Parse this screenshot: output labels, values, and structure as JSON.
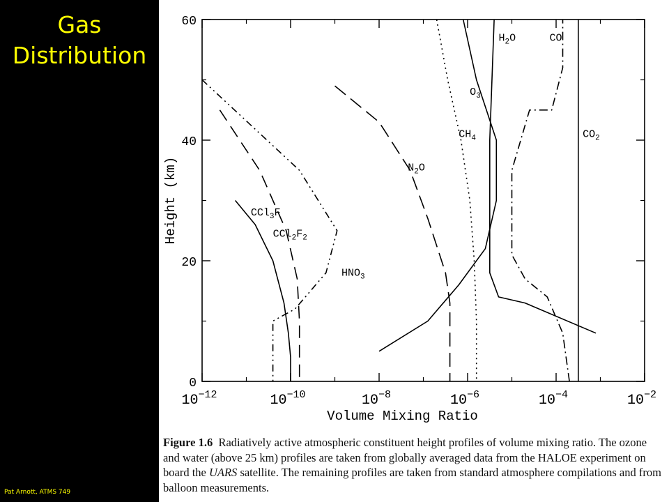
{
  "slide": {
    "title_line1": "Gas",
    "title_line2": "Distribution",
    "footer": "Pat Arnott,  ATMS 749",
    "title_color": "#FFFF00"
  },
  "caption": {
    "label": "Figure 1.6",
    "part1": "Radiatively active atmospheric constituent height profiles of volume mixing ratio. The ozone and water (above 25 km) profiles are taken from globally averaged data from the HALOE experiment on board the ",
    "satellite": "UARS",
    "part2": " satellite. The remaining profiles are taken from standard atmosphere compilations and from balloon measurements."
  },
  "chart_data": {
    "type": "line",
    "xlabel": "Volume Mixing Ratio",
    "ylabel": "Height (km)",
    "x_scale": "log",
    "xlim": [
      1e-12,
      0.01
    ],
    "ylim": [
      0,
      60
    ],
    "x_ticks": [
      {
        "base": "10",
        "exp": "−12",
        "value": -12
      },
      {
        "base": "10",
        "exp": "−10",
        "value": -10
      },
      {
        "base": "10",
        "exp": "−8",
        "value": -8
      },
      {
        "base": "10",
        "exp": "−6",
        "value": -6
      },
      {
        "base": "10",
        "exp": "−4",
        "value": -4
      },
      {
        "base": "10",
        "exp": "−2",
        "value": -2
      }
    ],
    "y_ticks": [
      {
        "label": "0",
        "value": 0
      },
      {
        "label": "20",
        "value": 20
      },
      {
        "label": "40",
        "value": 40
      },
      {
        "label": "60",
        "value": 60
      }
    ],
    "grid": false,
    "series": [
      {
        "key": "ccl3f",
        "name_parts": [
          [
            "CCl",
            false
          ],
          [
            "3",
            true
          ],
          [
            "F",
            false
          ]
        ],
        "label_pos": [
          -10.9,
          27.5
        ],
        "dash": "none",
        "points": [
          [
            -11.25,
            30
          ],
          [
            -10.8,
            26
          ],
          [
            -10.4,
            20
          ],
          [
            -10.15,
            13
          ],
          [
            -10.05,
            8
          ],
          [
            -10.0,
            4
          ],
          [
            -10.0,
            0
          ]
        ]
      },
      {
        "key": "ccl2f2",
        "name_parts": [
          [
            "CCl",
            false
          ],
          [
            "2",
            true
          ],
          [
            "F",
            false
          ],
          [
            "2",
            true
          ]
        ],
        "label_pos": [
          -10.4,
          24
        ],
        "dash": "18 10",
        "points": [
          [
            -11.6,
            45
          ],
          [
            -10.7,
            35
          ],
          [
            -10.1,
            25
          ],
          [
            -9.85,
            17
          ],
          [
            -9.8,
            10
          ],
          [
            -9.8,
            0
          ]
        ]
      },
      {
        "key": "hno3",
        "name_parts": [
          [
            "HNO",
            false
          ],
          [
            "3",
            true
          ]
        ],
        "label_pos": [
          -8.85,
          17.5
        ],
        "dash": "10 5 2 5 2 5",
        "points": [
          [
            -12.0,
            50
          ],
          [
            -9.8,
            35
          ],
          [
            -8.95,
            25
          ],
          [
            -9.2,
            18
          ],
          [
            -9.9,
            12
          ],
          [
            -10.4,
            10
          ],
          [
            -10.4,
            0
          ]
        ]
      },
      {
        "key": "n2o",
        "name_parts": [
          [
            "N",
            false
          ],
          [
            "2",
            true
          ],
          [
            "O",
            false
          ]
        ],
        "label_pos": [
          -7.35,
          35
        ],
        "dash": "20 9",
        "points": [
          [
            -9.0,
            49
          ],
          [
            -8.0,
            43
          ],
          [
            -7.3,
            35
          ],
          [
            -6.9,
            27
          ],
          [
            -6.5,
            18
          ],
          [
            -6.4,
            13
          ],
          [
            -6.4,
            0
          ]
        ]
      },
      {
        "key": "ch4",
        "name_parts": [
          [
            "CH",
            false
          ],
          [
            "4",
            true
          ]
        ],
        "label_pos": [
          -6.2,
          40.5
        ],
        "dash": "2 5",
        "points": [
          [
            -6.7,
            60
          ],
          [
            -6.45,
            50
          ],
          [
            -6.15,
            40
          ],
          [
            -5.95,
            30
          ],
          [
            -5.85,
            20
          ],
          [
            -5.8,
            10
          ],
          [
            -5.8,
            0
          ]
        ]
      },
      {
        "key": "o3",
        "name_parts": [
          [
            "O",
            false
          ],
          [
            "3",
            true
          ]
        ],
        "label_pos": [
          -5.95,
          47.5
        ],
        "dash": "none",
        "points": [
          [
            -8.0,
            5
          ],
          [
            -6.9,
            10
          ],
          [
            -6.2,
            16
          ],
          [
            -5.6,
            22
          ],
          [
            -5.35,
            30
          ],
          [
            -5.35,
            40
          ],
          [
            -5.8,
            50
          ],
          [
            -6.1,
            60
          ]
        ]
      },
      {
        "key": "h2o",
        "name_parts": [
          [
            "H",
            false
          ],
          [
            "2",
            true
          ],
          [
            "O",
            false
          ]
        ],
        "label_pos": [
          -5.3,
          56.5
        ],
        "dash": "none",
        "points": [
          [
            -3.1,
            8
          ],
          [
            -4.7,
            13
          ],
          [
            -5.3,
            14
          ],
          [
            -5.5,
            18
          ],
          [
            -5.5,
            25
          ],
          [
            -5.5,
            40
          ],
          [
            -5.4,
            60
          ]
        ]
      },
      {
        "key": "co",
        "name_parts": [
          [
            "CO",
            false
          ]
        ],
        "label_pos": [
          -4.15,
          56.5
        ],
        "dash": "12 5 2 5",
        "points": [
          [
            -3.7,
            0
          ],
          [
            -3.85,
            8
          ],
          [
            -4.2,
            14
          ],
          [
            -4.7,
            17
          ],
          [
            -5.0,
            21
          ],
          [
            -5.0,
            35
          ],
          [
            -4.6,
            45
          ],
          [
            -4.1,
            45
          ],
          [
            -3.85,
            52
          ],
          [
            -3.85,
            60
          ]
        ]
      },
      {
        "key": "co2",
        "name_parts": [
          [
            "CO",
            false
          ],
          [
            "2",
            true
          ]
        ],
        "label_pos": [
          -3.4,
          40.5
        ],
        "dash": "none",
        "points": [
          [
            -3.5,
            0
          ],
          [
            -3.5,
            60
          ]
        ]
      }
    ]
  }
}
